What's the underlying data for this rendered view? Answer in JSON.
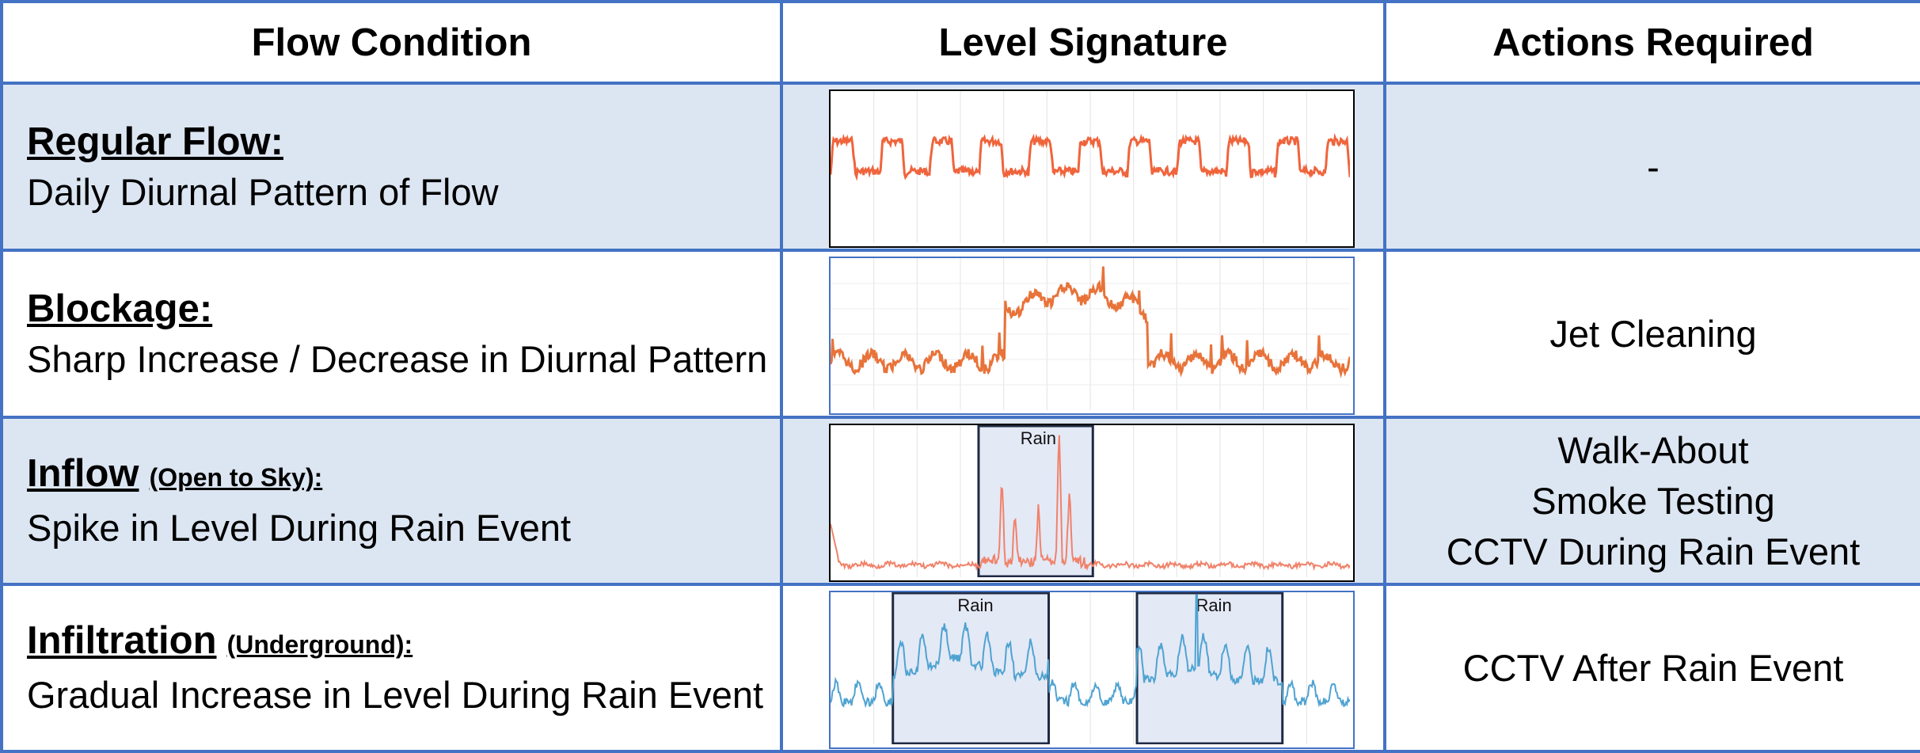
{
  "headers": {
    "condition": "Flow Condition",
    "signature": "Level Signature",
    "actions": "Actions Required"
  },
  "rows": [
    {
      "title": "Regular Flow:",
      "title_note": "",
      "description": "Daily Diurnal Pattern of Flow",
      "actions": [
        "-"
      ],
      "chart": {
        "pattern": "diurnal",
        "line_color": "#f0643c",
        "rain_label": ""
      }
    },
    {
      "title": "Blockage:",
      "title_note": "",
      "description": "Sharp Increase / Decrease in Diurnal Pattern",
      "actions": [
        "Jet Cleaning"
      ],
      "chart": {
        "pattern": "blockage",
        "line_color": "#e8733a",
        "rain_label": ""
      }
    },
    {
      "title": "Inflow",
      "title_note": "(Open to Sky):",
      "description": "Spike in Level During Rain Event",
      "actions": [
        "Walk-About",
        "Smoke Testing",
        "CCTV During Rain Event"
      ],
      "chart": {
        "pattern": "inflow",
        "line_color": "#f0826a",
        "rain_label": "Rain"
      }
    },
    {
      "title": "Infiltration",
      "title_note": "(Underground):",
      "description": "Gradual Increase in Level During Rain Event",
      "actions": [
        "CCTV After Rain Event"
      ],
      "chart": {
        "pattern": "infiltration",
        "line_color": "#4fa3d1",
        "rain_label": "Rain"
      }
    }
  ],
  "colors": {
    "border": "#4472c4",
    "shaded_row": "#dce6f2",
    "rain_window": "#e4e9f6",
    "rain_window_border": "#1f2a44"
  }
}
